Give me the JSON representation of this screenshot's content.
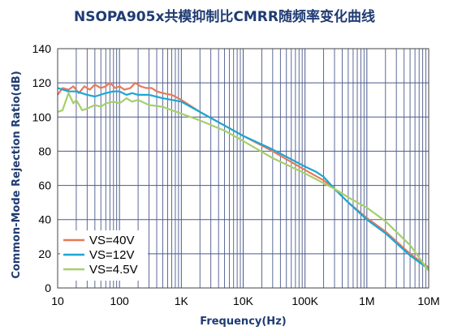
{
  "chart_data": {
    "type": "line",
    "title": "NSOPA905x共模抑制比CMRR随频率变化曲线",
    "xlabel": "Frequency(Hz)",
    "ylabel": "Common-Mode Rejection Ratio(dB)",
    "x_scale": "log",
    "xlim": [
      10,
      10000000
    ],
    "ylim": [
      0,
      140
    ],
    "x_ticks": [
      10,
      100,
      1000,
      10000,
      100000,
      1000000,
      10000000
    ],
    "x_tick_labels": [
      "10",
      "100",
      "1K",
      "10K",
      "100K",
      "1M",
      "10M"
    ],
    "y_ticks": [
      0,
      20,
      40,
      60,
      80,
      100,
      120,
      140
    ],
    "y_tick_labels": [
      "0",
      "20",
      "40",
      "60",
      "80",
      "100",
      "120",
      "140"
    ],
    "grid": true,
    "legend_position": "bottom-left",
    "series": [
      {
        "name": "VS=40V",
        "color": "#e8795a",
        "points": [
          [
            10,
            113
          ],
          [
            12,
            117
          ],
          [
            15,
            116
          ],
          [
            18,
            118
          ],
          [
            22,
            114
          ],
          [
            27,
            118
          ],
          [
            33,
            116
          ],
          [
            40,
            119
          ],
          [
            50,
            117
          ],
          [
            60,
            118
          ],
          [
            70,
            120
          ],
          [
            85,
            117
          ],
          [
            100,
            118
          ],
          [
            120,
            116
          ],
          [
            150,
            117
          ],
          [
            180,
            120
          ],
          [
            220,
            118
          ],
          [
            270,
            117
          ],
          [
            330,
            117
          ],
          [
            400,
            115
          ],
          [
            500,
            114
          ],
          [
            700,
            113
          ],
          [
            1000,
            110
          ],
          [
            2000,
            103
          ],
          [
            5000,
            95
          ],
          [
            10000,
            89
          ],
          [
            30000,
            80
          ],
          [
            100000,
            69
          ],
          [
            200000,
            63
          ],
          [
            300000,
            58
          ],
          [
            500000,
            50
          ],
          [
            1000000,
            41
          ],
          [
            2000000,
            33
          ],
          [
            5000000,
            20
          ],
          [
            10000000,
            12
          ]
        ]
      },
      {
        "name": "VS=12V",
        "color": "#1aa7d4",
        "points": [
          [
            10,
            117
          ],
          [
            15,
            115
          ],
          [
            20,
            115
          ],
          [
            30,
            113
          ],
          [
            40,
            112
          ],
          [
            60,
            114
          ],
          [
            80,
            115
          ],
          [
            100,
            115
          ],
          [
            130,
            113
          ],
          [
            160,
            114
          ],
          [
            200,
            113
          ],
          [
            300,
            113
          ],
          [
            500,
            111
          ],
          [
            1000,
            109
          ],
          [
            2000,
            103
          ],
          [
            5000,
            95
          ],
          [
            10000,
            89
          ],
          [
            30000,
            81
          ],
          [
            100000,
            71
          ],
          [
            150000,
            68
          ],
          [
            200000,
            65
          ],
          [
            300000,
            58
          ],
          [
            500000,
            50
          ],
          [
            1000000,
            40
          ],
          [
            2000000,
            32
          ],
          [
            5000000,
            19
          ],
          [
            10000000,
            11
          ]
        ]
      },
      {
        "name": "VS=4.5V",
        "color": "#a6cf6b",
        "points": [
          [
            10,
            103
          ],
          [
            12,
            104
          ],
          [
            15,
            114
          ],
          [
            18,
            108
          ],
          [
            20,
            110
          ],
          [
            25,
            104
          ],
          [
            30,
            105
          ],
          [
            40,
            107
          ],
          [
            50,
            106
          ],
          [
            60,
            108
          ],
          [
            80,
            109
          ],
          [
            100,
            108
          ],
          [
            130,
            111
          ],
          [
            160,
            109
          ],
          [
            200,
            110
          ],
          [
            300,
            107
          ],
          [
            500,
            106
          ],
          [
            700,
            104
          ],
          [
            1000,
            102
          ],
          [
            2000,
            98
          ],
          [
            5000,
            92
          ],
          [
            10000,
            86
          ],
          [
            30000,
            76
          ],
          [
            100000,
            67
          ],
          [
            300000,
            58
          ],
          [
            500000,
            53
          ],
          [
            1000000,
            47
          ],
          [
            2000000,
            39
          ],
          [
            5000000,
            25
          ],
          [
            10000000,
            10
          ]
        ]
      }
    ]
  }
}
